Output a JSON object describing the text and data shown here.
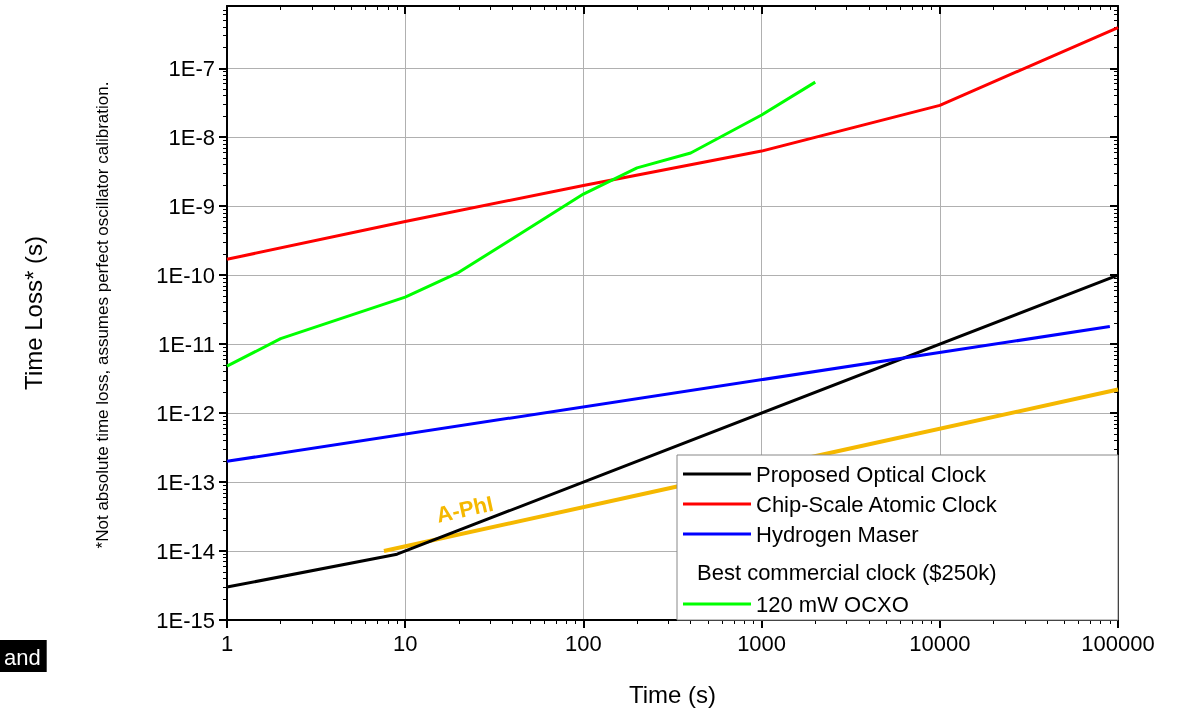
{
  "chart_data": {
    "type": "line",
    "xlabel": "Time (s)",
    "ylabel": "Time Loss* (s)",
    "log": "xy",
    "grid": true,
    "legend": "bottom right",
    "line_style": "solid",
    "marker": "none",
    "xlim": [
      1,
      100000
    ],
    "xticks": [
      1,
      10,
      100,
      1000,
      10000,
      100000
    ],
    "ylim": [
      1e-15,
      8e-07
    ],
    "yticks": [
      {
        "value": 1e-15,
        "label": "1E-15"
      },
      {
        "value": 1e-14,
        "label": "1E-14"
      },
      {
        "value": 1e-13,
        "label": "1E-13"
      },
      {
        "value": 1e-12,
        "label": "1E-12"
      },
      {
        "value": 1e-11,
        "label": "1E-11"
      },
      {
        "value": 1e-10,
        "label": "1E-10"
      },
      {
        "value": 1e-09,
        "label": "1E-9"
      },
      {
        "value": 1e-08,
        "label": "1E-8"
      },
      {
        "value": 1e-07,
        "label": "1E-7"
      }
    ],
    "series": [
      {
        "name": "Proposed Optical Clock",
        "color": "#000000",
        "x": [
          1,
          9,
          100000
        ],
        "values": [
          3e-15,
          9e-15,
          1e-10
        ]
      },
      {
        "name": "Chip-Scale Atomic Clock",
        "color": "#ff0000",
        "x": [
          1,
          10,
          100,
          1000,
          10000,
          100000
        ],
        "values": [
          1.7e-10,
          6e-10,
          2e-09,
          6.3e-09,
          2.9e-08,
          3.9e-07
        ]
      },
      {
        "name": "Hydrogen Maser",
        "color": "#0000ff",
        "x": [
          1,
          90000
        ],
        "values": [
          2e-13,
          1.8e-11
        ]
      },
      {
        "name": "120 mW OCXO",
        "color": "#00ff00",
        "x": [
          1,
          2,
          10,
          20,
          100,
          200,
          400,
          1000,
          2000
        ],
        "values": [
          4.8e-12,
          1.2e-11,
          4.8e-11,
          1.1e-10,
          1.5e-09,
          3.6e-09,
          5.9e-09,
          2.1e-08,
          6.3e-08
        ]
      },
      {
        "color": "#f5b800",
        "x": [
          7.6,
          100000
        ],
        "values": [
          1e-14,
          2.2e-12
        ]
      }
    ],
    "annotations": [
      "*Not absolute time loss, assumes perfect oscillator calibration.",
      "Best commercial clock ($250k)",
      "and",
      "A-PhI"
    ]
  }
}
